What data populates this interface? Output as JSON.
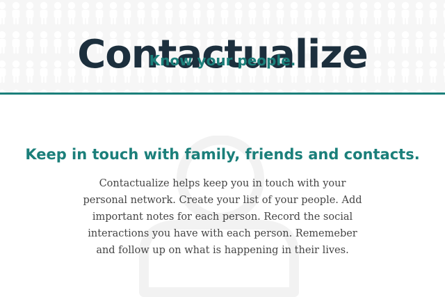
{
  "hero": {
    "title": "Contactualize",
    "tagline": "Know your people.",
    "background_pattern_icon": "person-silhouette-icon"
  },
  "main": {
    "headline": "Keep in touch with family, friends and contacts.",
    "description": "Contactualize helps keep you in touch with your personal network. Create your list of your people. Add important notes for each person. Record the social interactions you have with each person. Rememeber and follow up on what is happening in their lives.",
    "watermark_icon": "person-outline-icon"
  },
  "colors": {
    "title": "#1c2f3d",
    "accent": "#1b7f7a",
    "hero_background": "#f6f6f6",
    "body_text": "#444444"
  }
}
